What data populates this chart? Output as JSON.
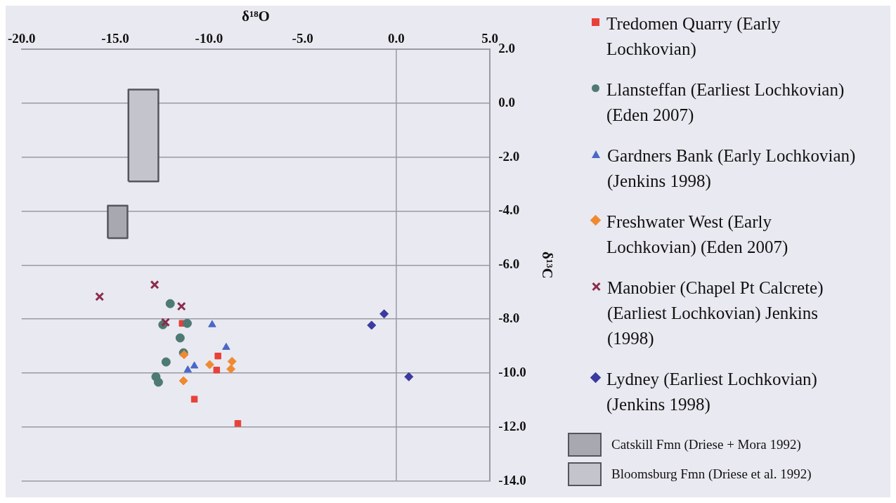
{
  "chart_data": {
    "type": "scatter",
    "xlabel": "δ¹⁸O",
    "ylabel": "δ¹³C",
    "xlim": [
      -20,
      5
    ],
    "xticks": [
      {
        "value": -20,
        "label": "-20.0"
      },
      {
        "value": -15,
        "label": "-15.0"
      },
      {
        "value": -10,
        "label": "-10.0"
      },
      {
        "value": -5,
        "label": "-5.0"
      },
      {
        "value": 0,
        "label": "0.0"
      },
      {
        "value": 5,
        "label": "5.0"
      }
    ],
    "ylim": [
      -14,
      2
    ],
    "yticks": [
      {
        "value": 2,
        "label": "2.0"
      },
      {
        "value": 0,
        "label": "0.0"
      },
      {
        "value": -2,
        "label": "-2.0"
      },
      {
        "value": -4,
        "label": "-4.0"
      },
      {
        "value": -6,
        "label": "-6.0"
      },
      {
        "value": -8,
        "label": "-8.0"
      },
      {
        "value": -10,
        "label": "-10.0"
      },
      {
        "value": -12,
        "label": "-12.0"
      },
      {
        "value": -14,
        "label": "-14.0"
      }
    ],
    "grid": "y",
    "legend": "right",
    "ref_lines": [
      {
        "axis": "x",
        "value": 0,
        "color": "#9a9aa4"
      }
    ],
    "series": [
      {
        "name": "Tredomen  Quarry (Early Lochkovian)",
        "color": "#e8413a",
        "marker": "square",
        "x": [
          -11.43,
          -9.52,
          -9.59,
          -10.78,
          -8.46
        ],
        "values": [
          -8.16,
          -9.37,
          -9.89,
          -10.97,
          -11.87
        ]
      },
      {
        "name": "Llansteffan (Earliest Lochkovian) (Eden 2007)",
        "color": "#4d7a73",
        "marker": "circle",
        "x": [
          -12.07,
          -12.46,
          -11.16,
          -11.54,
          -11.36,
          -12.29,
          -12.83,
          -12.7
        ],
        "values": [
          -7.43,
          -8.21,
          -8.16,
          -8.7,
          -9.25,
          -9.59,
          -10.14,
          -10.34
        ]
      },
      {
        "name": "Gardners Bank (Early Lochkovian) (Jenkins 1998)",
        "color": "#4a68c8",
        "marker": "triangle",
        "x": [
          -9.83,
          -9.08,
          -10.78,
          -11.13
        ],
        "values": [
          -8.21,
          -9.05,
          -9.74,
          -9.89
        ]
      },
      {
        "name": "Freshwater West  (Early Lochkovian) (Eden 2007)",
        "color": "#f08a30",
        "marker": "diamond",
        "x": [
          -11.33,
          -9.96,
          -8.77,
          -8.83,
          -11.36
        ],
        "values": [
          -9.32,
          -9.69,
          -9.57,
          -9.85,
          -10.29
        ]
      },
      {
        "name": "Manobier (Chapel Pt Calcrete) (Earliest Lochkovian) Jenkins (1998)",
        "color": "#8b2c4a",
        "marker": "cross",
        "x": [
          -15.84,
          -12.9,
          -11.47,
          -12.32
        ],
        "values": [
          -7.17,
          -6.73,
          -7.53,
          -8.12
        ]
      },
      {
        "name": "Lydney (Earliest Lochkovian) (Jenkins 1998)",
        "color": "#3a3aa0",
        "marker": "diamond",
        "x": [
          -0.65,
          -1.32,
          0.67
        ],
        "values": [
          -7.81,
          -8.23,
          -10.14
        ]
      },
      {
        "name": "Catskill Fmn (Driese + Mora 1992)",
        "type": "area",
        "color": "#a8a8b0",
        "x": [
          -15.4,
          -15.4,
          -14.35,
          -14.35,
          -15.4
        ],
        "values": [
          -5.0,
          -3.8,
          -3.8,
          -5.0,
          -5.0
        ]
      },
      {
        "name": "Bloomsburg Fmn (Driese et al. 1992)",
        "type": "area",
        "color": "#c4c4cc",
        "x": [
          -14.3,
          -14.3,
          -12.7,
          -12.7,
          -14.3
        ],
        "values": [
          -2.9,
          0.5,
          0.5,
          -2.9,
          -2.9
        ]
      }
    ]
  }
}
